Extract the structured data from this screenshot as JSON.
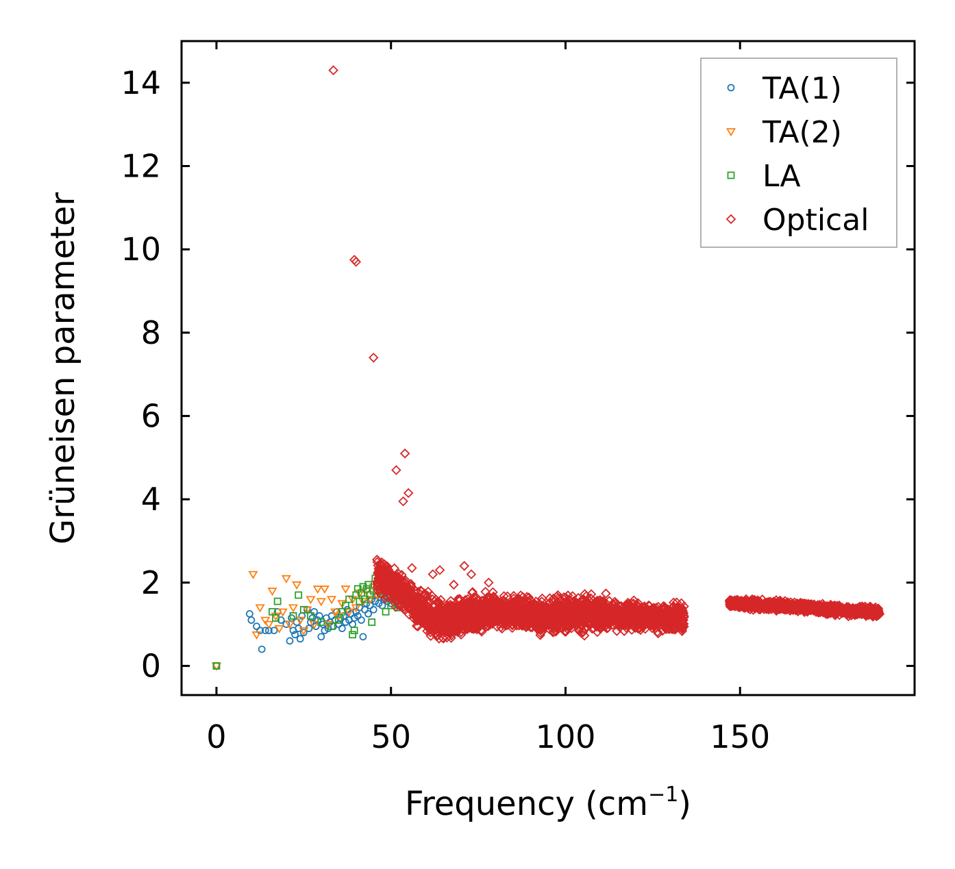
{
  "chart_data": {
    "type": "scatter",
    "title": "",
    "xlabel": "Frequency (cm",
    "xlabel_sup": "−1",
    "xlabel_tail": ")",
    "ylabel": "Grüneisen parameter",
    "xlim": [
      -10,
      200
    ],
    "ylim": [
      -0.7,
      15
    ],
    "xticks": [
      0,
      50,
      100,
      150
    ],
    "xtick_labels": [
      "0",
      "50",
      "100",
      "150"
    ],
    "yticks": [
      0,
      2,
      4,
      6,
      8,
      10,
      12,
      14
    ],
    "ytick_labels": [
      "0",
      "2",
      "4",
      "6",
      "8",
      "10",
      "12",
      "14"
    ],
    "grid": false,
    "legend_position": "top-right",
    "series": [
      {
        "name": "TA(1)",
        "marker": "circle",
        "color": "#1f77b4",
        "points": [
          [
            0,
            0
          ],
          [
            9.5,
            1.25
          ],
          [
            10,
            1.1
          ],
          [
            11.5,
            0.95
          ],
          [
            12.5,
            0.85
          ],
          [
            13,
            0.4
          ],
          [
            14,
            0.85
          ],
          [
            15,
            0.85
          ],
          [
            16.5,
            0.85
          ],
          [
            17.5,
            1.3
          ],
          [
            18.5,
            1.1
          ],
          [
            20,
            1.0
          ],
          [
            21,
            0.6
          ],
          [
            21.5,
            1.15
          ],
          [
            22,
            0.85
          ],
          [
            22.5,
            0.75
          ],
          [
            23,
            1.05
          ],
          [
            23.5,
            0.9
          ],
          [
            24,
            0.65
          ],
          [
            24.5,
            1.2
          ],
          [
            25,
            0.8
          ],
          [
            26,
            1.35
          ],
          [
            26.5,
            0.9
          ],
          [
            27,
            1.05
          ],
          [
            27.5,
            1.15
          ],
          [
            28,
            1.3
          ],
          [
            28.5,
            0.95
          ],
          [
            29,
            1.1
          ],
          [
            29.5,
            1.2
          ],
          [
            30,
            0.7
          ],
          [
            30.5,
            1.0
          ],
          [
            31,
            0.85
          ],
          [
            31.5,
            1.15
          ],
          [
            32,
            0.9
          ],
          [
            32.5,
            1.05
          ],
          [
            33,
            1.2
          ],
          [
            33.5,
            0.95
          ],
          [
            34,
            1.1
          ],
          [
            34.5,
            1.3
          ],
          [
            35,
            1.0
          ],
          [
            35.5,
            1.15
          ],
          [
            36,
            0.9
          ],
          [
            36.5,
            1.2
          ],
          [
            37,
            1.05
          ],
          [
            37.5,
            1.35
          ],
          [
            38,
            1.1
          ],
          [
            38.5,
            1.25
          ],
          [
            39,
            1.0
          ],
          [
            39.5,
            1.15
          ],
          [
            40,
            1.3
          ],
          [
            40.5,
            1.2
          ],
          [
            41,
            1.4
          ],
          [
            41.5,
            1.1
          ],
          [
            42,
            0.7
          ],
          [
            42.5,
            1.35
          ],
          [
            43,
            1.5
          ],
          [
            43.5,
            1.25
          ],
          [
            44,
            1.45
          ],
          [
            44.5,
            1.6
          ],
          [
            45,
            1.35
          ],
          [
            45.5,
            1.55
          ],
          [
            46,
            1.7
          ],
          [
            46.5,
            1.5
          ],
          [
            47,
            1.65
          ],
          [
            47.5,
            1.45
          ],
          [
            48,
            1.6
          ],
          [
            48.5,
            1.75
          ],
          [
            49,
            1.55
          ],
          [
            49.5,
            1.7
          ],
          [
            50,
            1.5
          ],
          [
            50.5,
            1.65
          ],
          [
            51,
            1.8
          ],
          [
            51.5,
            1.6
          ],
          [
            52,
            1.45
          ]
        ]
      },
      {
        "name": "TA(2)",
        "marker": "triangle-down",
        "color": "#ff7f0e",
        "points": [
          [
            0,
            0
          ],
          [
            10.5,
            2.2
          ],
          [
            11.5,
            0.75
          ],
          [
            12.5,
            1.4
          ],
          [
            14,
            1.1
          ],
          [
            15,
            1.0
          ],
          [
            16,
            1.8
          ],
          [
            17,
            1.2
          ],
          [
            18,
            0.9
          ],
          [
            19,
            1.3
          ],
          [
            20,
            2.1
          ],
          [
            21,
            1.0
          ],
          [
            22,
            1.4
          ],
          [
            23,
            1.95
          ],
          [
            24,
            1.1
          ],
          [
            25,
            0.85
          ],
          [
            26,
            1.35
          ],
          [
            27,
            1.6
          ],
          [
            28,
            1.0
          ],
          [
            29,
            1.85
          ],
          [
            30,
            1.55
          ],
          [
            31,
            1.85
          ],
          [
            32,
            1.0
          ],
          [
            33,
            1.6
          ],
          [
            34,
            1.3
          ],
          [
            35,
            1.2
          ],
          [
            36,
            1.5
          ],
          [
            37,
            1.85
          ],
          [
            38,
            1.3
          ],
          [
            39,
            1.6
          ],
          [
            40,
            1.4
          ],
          [
            41,
            1.75
          ],
          [
            42,
            1.55
          ],
          [
            43,
            1.8
          ],
          [
            44,
            1.6
          ],
          [
            45,
            1.9
          ],
          [
            46,
            1.7
          ],
          [
            47,
            1.85
          ],
          [
            48,
            1.75
          ],
          [
            49,
            1.9
          ],
          [
            50,
            1.8
          ]
        ]
      },
      {
        "name": "LA",
        "marker": "square",
        "color": "#2ca02c",
        "points": [
          [
            0,
            0
          ],
          [
            16,
            1.3
          ],
          [
            17,
            1.15
          ],
          [
            17.5,
            1.55
          ],
          [
            22,
            1.2
          ],
          [
            23.5,
            1.7
          ],
          [
            25,
            1.35
          ],
          [
            27,
            1.2
          ],
          [
            30,
            1.05
          ],
          [
            33,
            0.95
          ],
          [
            35,
            1.1
          ],
          [
            36,
            1.3
          ],
          [
            37,
            1.45
          ],
          [
            38,
            1.6
          ],
          [
            39,
            0.75
          ],
          [
            39.5,
            0.85
          ],
          [
            40,
            1.7
          ],
          [
            40.5,
            1.85
          ],
          [
            41,
            1.55
          ],
          [
            41.5,
            1.75
          ],
          [
            42,
            1.9
          ],
          [
            42.5,
            1.6
          ],
          [
            43,
            1.85
          ],
          [
            43.5,
            1.95
          ],
          [
            44,
            1.7
          ],
          [
            44.5,
            1.05
          ],
          [
            45,
            1.8
          ],
          [
            45.5,
            2.1
          ],
          [
            46,
            1.9
          ],
          [
            46.5,
            2.05
          ],
          [
            47,
            1.75
          ],
          [
            47.5,
            1.95
          ],
          [
            48,
            1.8
          ],
          [
            48.5,
            1.3
          ],
          [
            49,
            1.65
          ],
          [
            50,
            1.45
          ],
          [
            51,
            1.55
          ],
          [
            52,
            1.4
          ],
          [
            53,
            1.5
          ]
        ]
      },
      {
        "name": "Optical",
        "marker": "diamond",
        "color": "#d62728",
        "points": [
          [
            33.5,
            14.3
          ],
          [
            39.5,
            9.75
          ],
          [
            40,
            9.7
          ],
          [
            45,
            7.4
          ],
          [
            51.5,
            4.7
          ],
          [
            53.5,
            3.95
          ],
          [
            54,
            5.1
          ],
          [
            55,
            4.15
          ],
          [
            56,
            2.35
          ],
          [
            62,
            2.2
          ],
          [
            64,
            2.3
          ],
          [
            68,
            1.95
          ],
          [
            71,
            2.4
          ],
          [
            73,
            2.2
          ],
          [
            78,
            2.0
          ],
          [
            46,
            2.55
          ],
          [
            47,
            2.45
          ],
          [
            48,
            2.35
          ]
        ],
        "bands": [
          {
            "x_range": [
              46,
              56
            ],
            "y_center_start": 2.2,
            "y_center_end": 1.6,
            "y_spread": 0.55
          },
          {
            "x_range": [
              56,
              66
            ],
            "y_center_start": 1.45,
            "y_center_end": 1.05,
            "y_spread": 0.6
          },
          {
            "x_range": [
              66,
              80
            ],
            "y_center_start": 1.05,
            "y_center_end": 1.35,
            "y_spread": 0.65
          },
          {
            "x_range": [
              80,
              95
            ],
            "y_center_start": 1.3,
            "y_center_end": 1.2,
            "y_spread": 0.55
          },
          {
            "x_range": [
              95,
              112
            ],
            "y_center_start": 1.25,
            "y_center_end": 1.25,
            "y_spread": 0.6
          },
          {
            "x_range": [
              112,
              134
            ],
            "y_center_start": 1.2,
            "y_center_end": 1.15,
            "y_spread": 0.45
          },
          {
            "x_range": [
              147,
              160
            ],
            "y_center_start": 1.5,
            "y_center_end": 1.45,
            "y_spread": 0.15
          },
          {
            "x_range": [
              160,
              190
            ],
            "y_center_start": 1.45,
            "y_center_end": 1.28,
            "y_spread": 0.15
          }
        ]
      }
    ]
  }
}
